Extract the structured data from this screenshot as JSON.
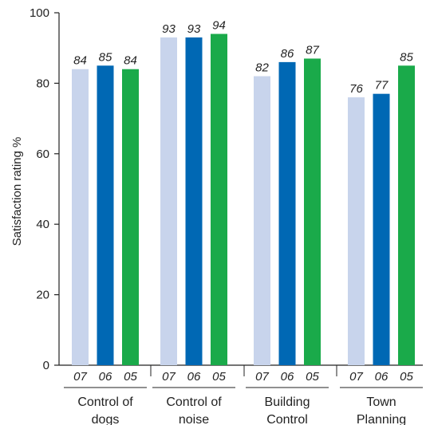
{
  "chart_data": {
    "type": "bar",
    "ylabel": "Satisfaction rating %",
    "ylim": [
      0,
      100
    ],
    "yticks": [
      0,
      20,
      40,
      60,
      80,
      100
    ],
    "grid": false,
    "categories": [
      [
        "Control of",
        "dogs"
      ],
      [
        "Control of",
        "noise"
      ],
      [
        "Building",
        "Control"
      ],
      [
        "Town",
        "Planning"
      ]
    ],
    "series": [
      {
        "name": "07",
        "color": "#c8d4ec",
        "values": [
          84,
          93,
          82,
          76
        ]
      },
      {
        "name": "06",
        "color": "#0068b4",
        "values": [
          85,
          93,
          86,
          77
        ]
      },
      {
        "name": "05",
        "color": "#1aaa4a",
        "values": [
          84,
          94,
          87,
          85
        ]
      }
    ]
  }
}
